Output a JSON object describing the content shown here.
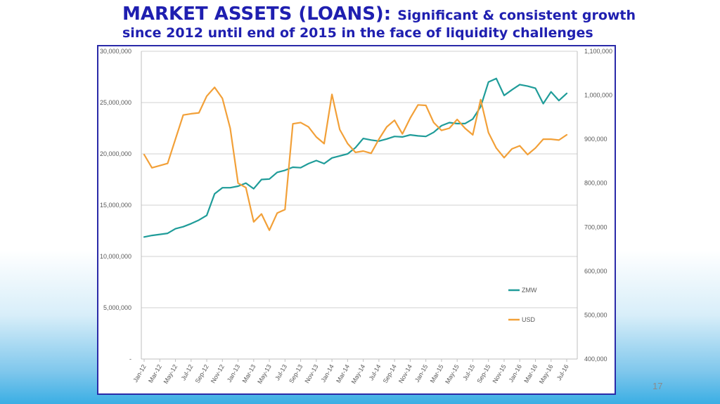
{
  "slide": {
    "title_main": "MARKET ASSETS (LOANS):",
    "title_sub_inline": "Significant & consistent growth",
    "title_line2": "since 2012 until end of 2015 in the face of liquidity challenges",
    "page_number": "17"
  },
  "chart_data": {
    "type": "line",
    "title": "",
    "xlabel": "",
    "ylabel": "",
    "grid": true,
    "legend_position": "right, lower",
    "x_labels": [
      "Jan-12",
      "Mar-12",
      "May-12",
      "Jul-12",
      "Sep-12",
      "Nov-12",
      "Jan-13",
      "Mar-13",
      "May-13",
      "Jul-13",
      "Sep-13",
      "Nov-13",
      "Jan-14",
      "Mar-14",
      "May-14",
      "Jul-14",
      "Sep-14",
      "Nov-14",
      "Jan-15",
      "Mar-15",
      "May-15",
      "Jul-15",
      "Sep-15",
      "Nov-15",
      "Jan-16",
      "Mar-16",
      "May-16",
      "Jul-16"
    ],
    "y_left": {
      "range": [
        0,
        30000000
      ],
      "ticks": [
        0,
        5000000,
        10000000,
        15000000,
        20000000,
        25000000,
        30000000
      ],
      "tick_labels": [
        "-",
        "5,000,000",
        "10,000,000",
        "15,000,000",
        "20,000,000",
        "25,000,000",
        "30,000,000"
      ]
    },
    "y_right": {
      "range": [
        400000,
        1100000
      ],
      "ticks": [
        400000,
        500000,
        600000,
        700000,
        800000,
        900000,
        1000000,
        1100000
      ],
      "tick_labels": [
        "400,000",
        "500,000",
        "600,000",
        "700,000",
        "800,000",
        "900,000",
        "1,000,000",
        "1,100,000"
      ]
    },
    "series": [
      {
        "name": "ZMW",
        "axis": "left",
        "color": "#1f9c99",
        "values": [
          11900000,
          12050000,
          12150000,
          12250000,
          12700000,
          12900000,
          13200000,
          13550000,
          14000000,
          16100000,
          16700000,
          16700000,
          16850000,
          17150000,
          16600000,
          17500000,
          17550000,
          18200000,
          18400000,
          18700000,
          18650000,
          19050000,
          19350000,
          19050000,
          19600000,
          19800000,
          20000000,
          20600000,
          21500000,
          21350000,
          21250000,
          21450000,
          21700000,
          21650000,
          21850000,
          21750000,
          21700000,
          22100000,
          22750000,
          23050000,
          22950000,
          22950000,
          23400000,
          24600000,
          27000000,
          27350000,
          25700000,
          26250000,
          26750000,
          26600000,
          26400000,
          24900000,
          26050000,
          25200000,
          25900000
        ]
      },
      {
        "name": "USD",
        "axis": "right",
        "color": "#f2a038",
        "values": [
          865000,
          835000,
          840000,
          845000,
          900000,
          955000,
          958000,
          960000,
          998000,
          1018000,
          993000,
          925000,
          800000,
          790000,
          712000,
          730000,
          693000,
          732000,
          740000,
          935000,
          938000,
          928000,
          905000,
          890000,
          1002000,
          922000,
          890000,
          870000,
          873000,
          868000,
          900000,
          928000,
          943000,
          912000,
          948000,
          978000,
          977000,
          938000,
          920000,
          925000,
          945000,
          925000,
          910000,
          990000,
          915000,
          880000,
          858000,
          878000,
          885000,
          865000,
          880000,
          900000,
          900000,
          898000,
          910000
        ]
      }
    ]
  }
}
